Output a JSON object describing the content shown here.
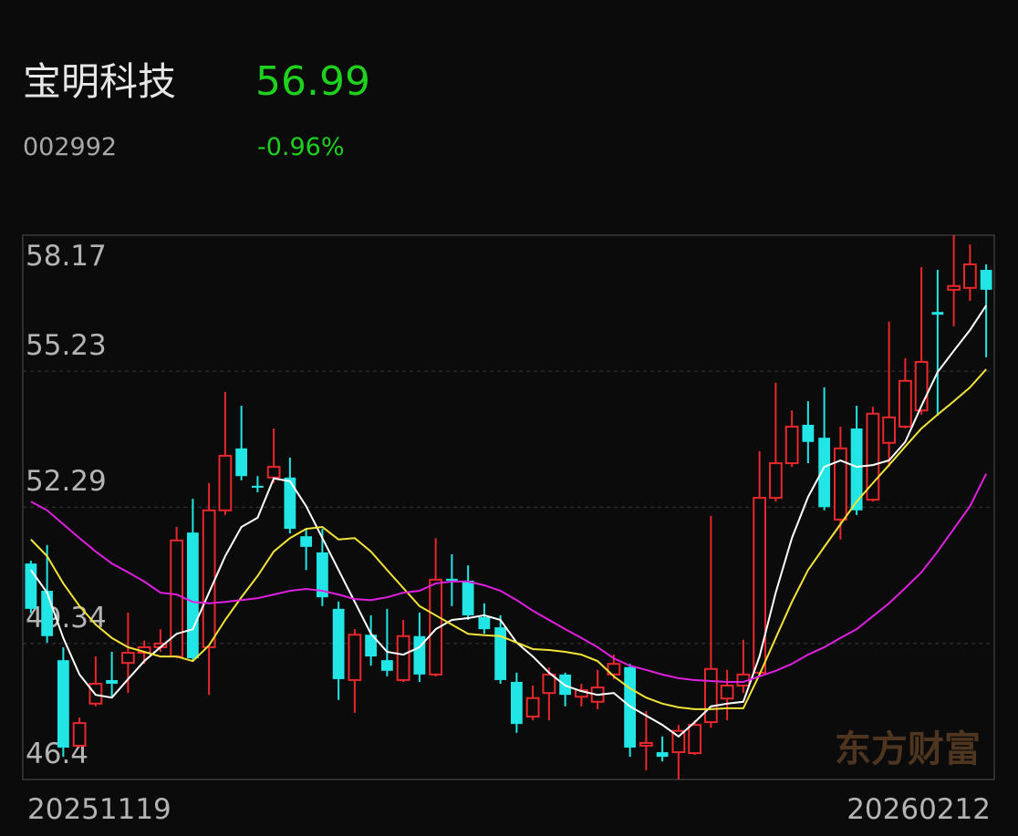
{
  "stock": {
    "name": "宝明科技",
    "price": 56.99,
    "code": "002992",
    "change": "-0.96%",
    "watermark": "东方财富"
  },
  "chart_data": {
    "type": "candlestick",
    "categories": [
      "20251119",
      null,
      null,
      null,
      null,
      null,
      null,
      null,
      null,
      null,
      null,
      null,
      null,
      null,
      null,
      null,
      null,
      null,
      null,
      null,
      null,
      null,
      null,
      null,
      null,
      null,
      null,
      null,
      null,
      null,
      null,
      null,
      null,
      null,
      null,
      null,
      null,
      null,
      null,
      null,
      null,
      null,
      null,
      null,
      null,
      null,
      null,
      null,
      null,
      null,
      null,
      null,
      null,
      null,
      null,
      null,
      null,
      null,
      null,
      "20260212"
    ],
    "open": [
      51.07,
      50.48,
      48.98,
      47.13,
      48.04,
      48.55,
      48.92,
      49.14,
      49.26,
      49.06,
      51.74,
      49.26,
      52.22,
      53.56,
      52.75,
      52.93,
      52.93,
      51.66,
      51.31,
      50.09,
      48.55,
      49.53,
      48.98,
      48.55,
      49.5,
      48.67,
      50.74,
      50.7,
      49.91,
      49.69,
      48.51,
      47.76,
      48.27,
      48.67,
      48.19,
      48.08,
      48.67,
      48.83,
      47.13,
      46.99,
      46.99,
      46.97,
      47.64,
      48.15,
      48.43,
      48.71,
      52.49,
      53.24,
      54.07,
      53.79,
      52.02,
      53.99,
      52.45,
      53.68,
      54.03,
      54.38,
      56.51,
      56.99,
      57.03,
      57.42
    ],
    "high": [
      51.13,
      51.47,
      49.26,
      47.74,
      49.06,
      49.16,
      50.01,
      49.4,
      49.65,
      51.86,
      52.47,
      52.81,
      54.78,
      54.48,
      52.96,
      53.99,
      53.36,
      51.82,
      51.82,
      50.25,
      49.65,
      49.95,
      50.09,
      49.85,
      50.01,
      51.62,
      51.27,
      51.03,
      50.21,
      49.95,
      48.71,
      48.43,
      48.82,
      48.71,
      48.47,
      48.77,
      49.1,
      48.9,
      47.88,
      47.33,
      47.58,
      47.68,
      52.1,
      48.77,
      49.42,
      53.5,
      54.98,
      54.38,
      54.58,
      54.88,
      54.03,
      54.48,
      54.46,
      56.3,
      55.51,
      57.48,
      57.42,
      58.17,
      57.97,
      57.54
    ],
    "low": [
      50.0,
      49.36,
      46.89,
      47.09,
      47.98,
      48.17,
      48.27,
      48.9,
      49.16,
      49.02,
      48.98,
      48.23,
      52.12,
      52.87,
      52.61,
      52.81,
      51.72,
      50.93,
      50.15,
      48.12,
      47.84,
      48.86,
      48.63,
      48.51,
      48.51,
      48.63,
      50.15,
      49.85,
      49.55,
      48.47,
      47.41,
      47.68,
      47.68,
      47.98,
      47.98,
      47.92,
      48.57,
      46.89,
      46.6,
      46.79,
      46.4,
      46.93,
      47.52,
      47.68,
      48.27,
      48.67,
      52.41,
      53.16,
      53.24,
      52.22,
      51.59,
      52.12,
      52.41,
      53.16,
      53.99,
      54.29,
      54.27,
      56.2,
      56.75,
      55.53
    ],
    "close": [
      50.09,
      49.5,
      47.09,
      47.62,
      48.47,
      48.47,
      49.14,
      49.26,
      49.34,
      51.57,
      49.02,
      52.22,
      53.4,
      52.96,
      52.71,
      53.16,
      51.82,
      51.43,
      50.34,
      48.57,
      49.53,
      49.06,
      48.75,
      49.5,
      48.67,
      50.72,
      50.7,
      49.95,
      49.65,
      48.55,
      47.6,
      48.16,
      48.67,
      48.23,
      48.33,
      48.39,
      48.9,
      47.09,
      47.19,
      46.89,
      47.45,
      47.58,
      48.79,
      48.43,
      48.67,
      52.49,
      53.24,
      54.03,
      53.7,
      52.29,
      53.56,
      52.22,
      54.31,
      54.23,
      55.02,
      55.43,
      56.45,
      57.07,
      57.54,
      56.99
    ],
    "up_color": "#e8282d",
    "down_color": "#22e6e6",
    "series": [
      {
        "color": "#ffffff",
        "values": [
          50.93,
          50.44,
          49.46,
          48.67,
          48.23,
          48.17,
          48.57,
          48.96,
          49.26,
          49.55,
          49.65,
          50.44,
          51.23,
          51.86,
          52.06,
          52.91,
          52.85,
          52.31,
          51.62,
          50.93,
          50.24,
          49.55,
          49.16,
          49.1,
          49.26,
          49.65,
          49.85,
          49.89,
          49.95,
          49.85,
          49.36,
          49.06,
          48.71,
          48.43,
          48.31,
          48.23,
          48.27,
          47.98,
          47.78,
          47.58,
          47.33,
          47.64,
          47.98,
          48.04,
          48.08,
          49.06,
          50.44,
          51.62,
          52.51,
          53.16,
          53.3,
          53.16,
          53.2,
          53.3,
          53.7,
          54.48,
          55.21,
          55.67,
          56.12,
          56.65
        ]
      },
      {
        "color": "#f2e33a",
        "values": [
          51.59,
          51.23,
          50.64,
          50.15,
          49.75,
          49.46,
          49.26,
          49.16,
          49.06,
          49.06,
          48.96,
          49.3,
          49.85,
          50.34,
          50.8,
          51.33,
          51.62,
          51.82,
          51.86,
          51.59,
          51.62,
          51.33,
          50.93,
          50.54,
          50.15,
          49.95,
          49.75,
          49.55,
          49.52,
          49.5,
          49.36,
          49.22,
          49.2,
          49.16,
          49.1,
          48.96,
          48.63,
          48.37,
          48.17,
          48.04,
          47.96,
          47.92,
          47.92,
          47.94,
          47.94,
          48.67,
          49.46,
          50.24,
          50.93,
          51.43,
          51.92,
          52.41,
          52.81,
          53.2,
          53.6,
          53.99,
          54.29,
          54.58,
          54.88,
          55.27
        ]
      },
      {
        "color": "#e020e0",
        "values": [
          52.41,
          52.22,
          51.92,
          51.62,
          51.33,
          51.07,
          50.88,
          50.68,
          50.44,
          50.4,
          50.24,
          50.21,
          50.24,
          50.28,
          50.32,
          50.4,
          50.48,
          50.52,
          50.48,
          50.4,
          50.3,
          50.28,
          50.34,
          50.44,
          50.48,
          50.64,
          50.68,
          50.68,
          50.6,
          50.48,
          50.28,
          50.05,
          49.85,
          49.65,
          49.46,
          49.26,
          49.02,
          48.86,
          48.77,
          48.67,
          48.59,
          48.55,
          48.53,
          48.51,
          48.51,
          48.63,
          48.75,
          48.9,
          49.1,
          49.26,
          49.46,
          49.65,
          49.93,
          50.21,
          50.54,
          50.88,
          51.33,
          51.82,
          52.31,
          53.01
        ]
      }
    ],
    "ylim": [
      46.4,
      58.17
    ],
    "yticks": [
      46.4,
      49.34,
      52.29,
      55.23,
      58.17
    ],
    "grid": true
  }
}
